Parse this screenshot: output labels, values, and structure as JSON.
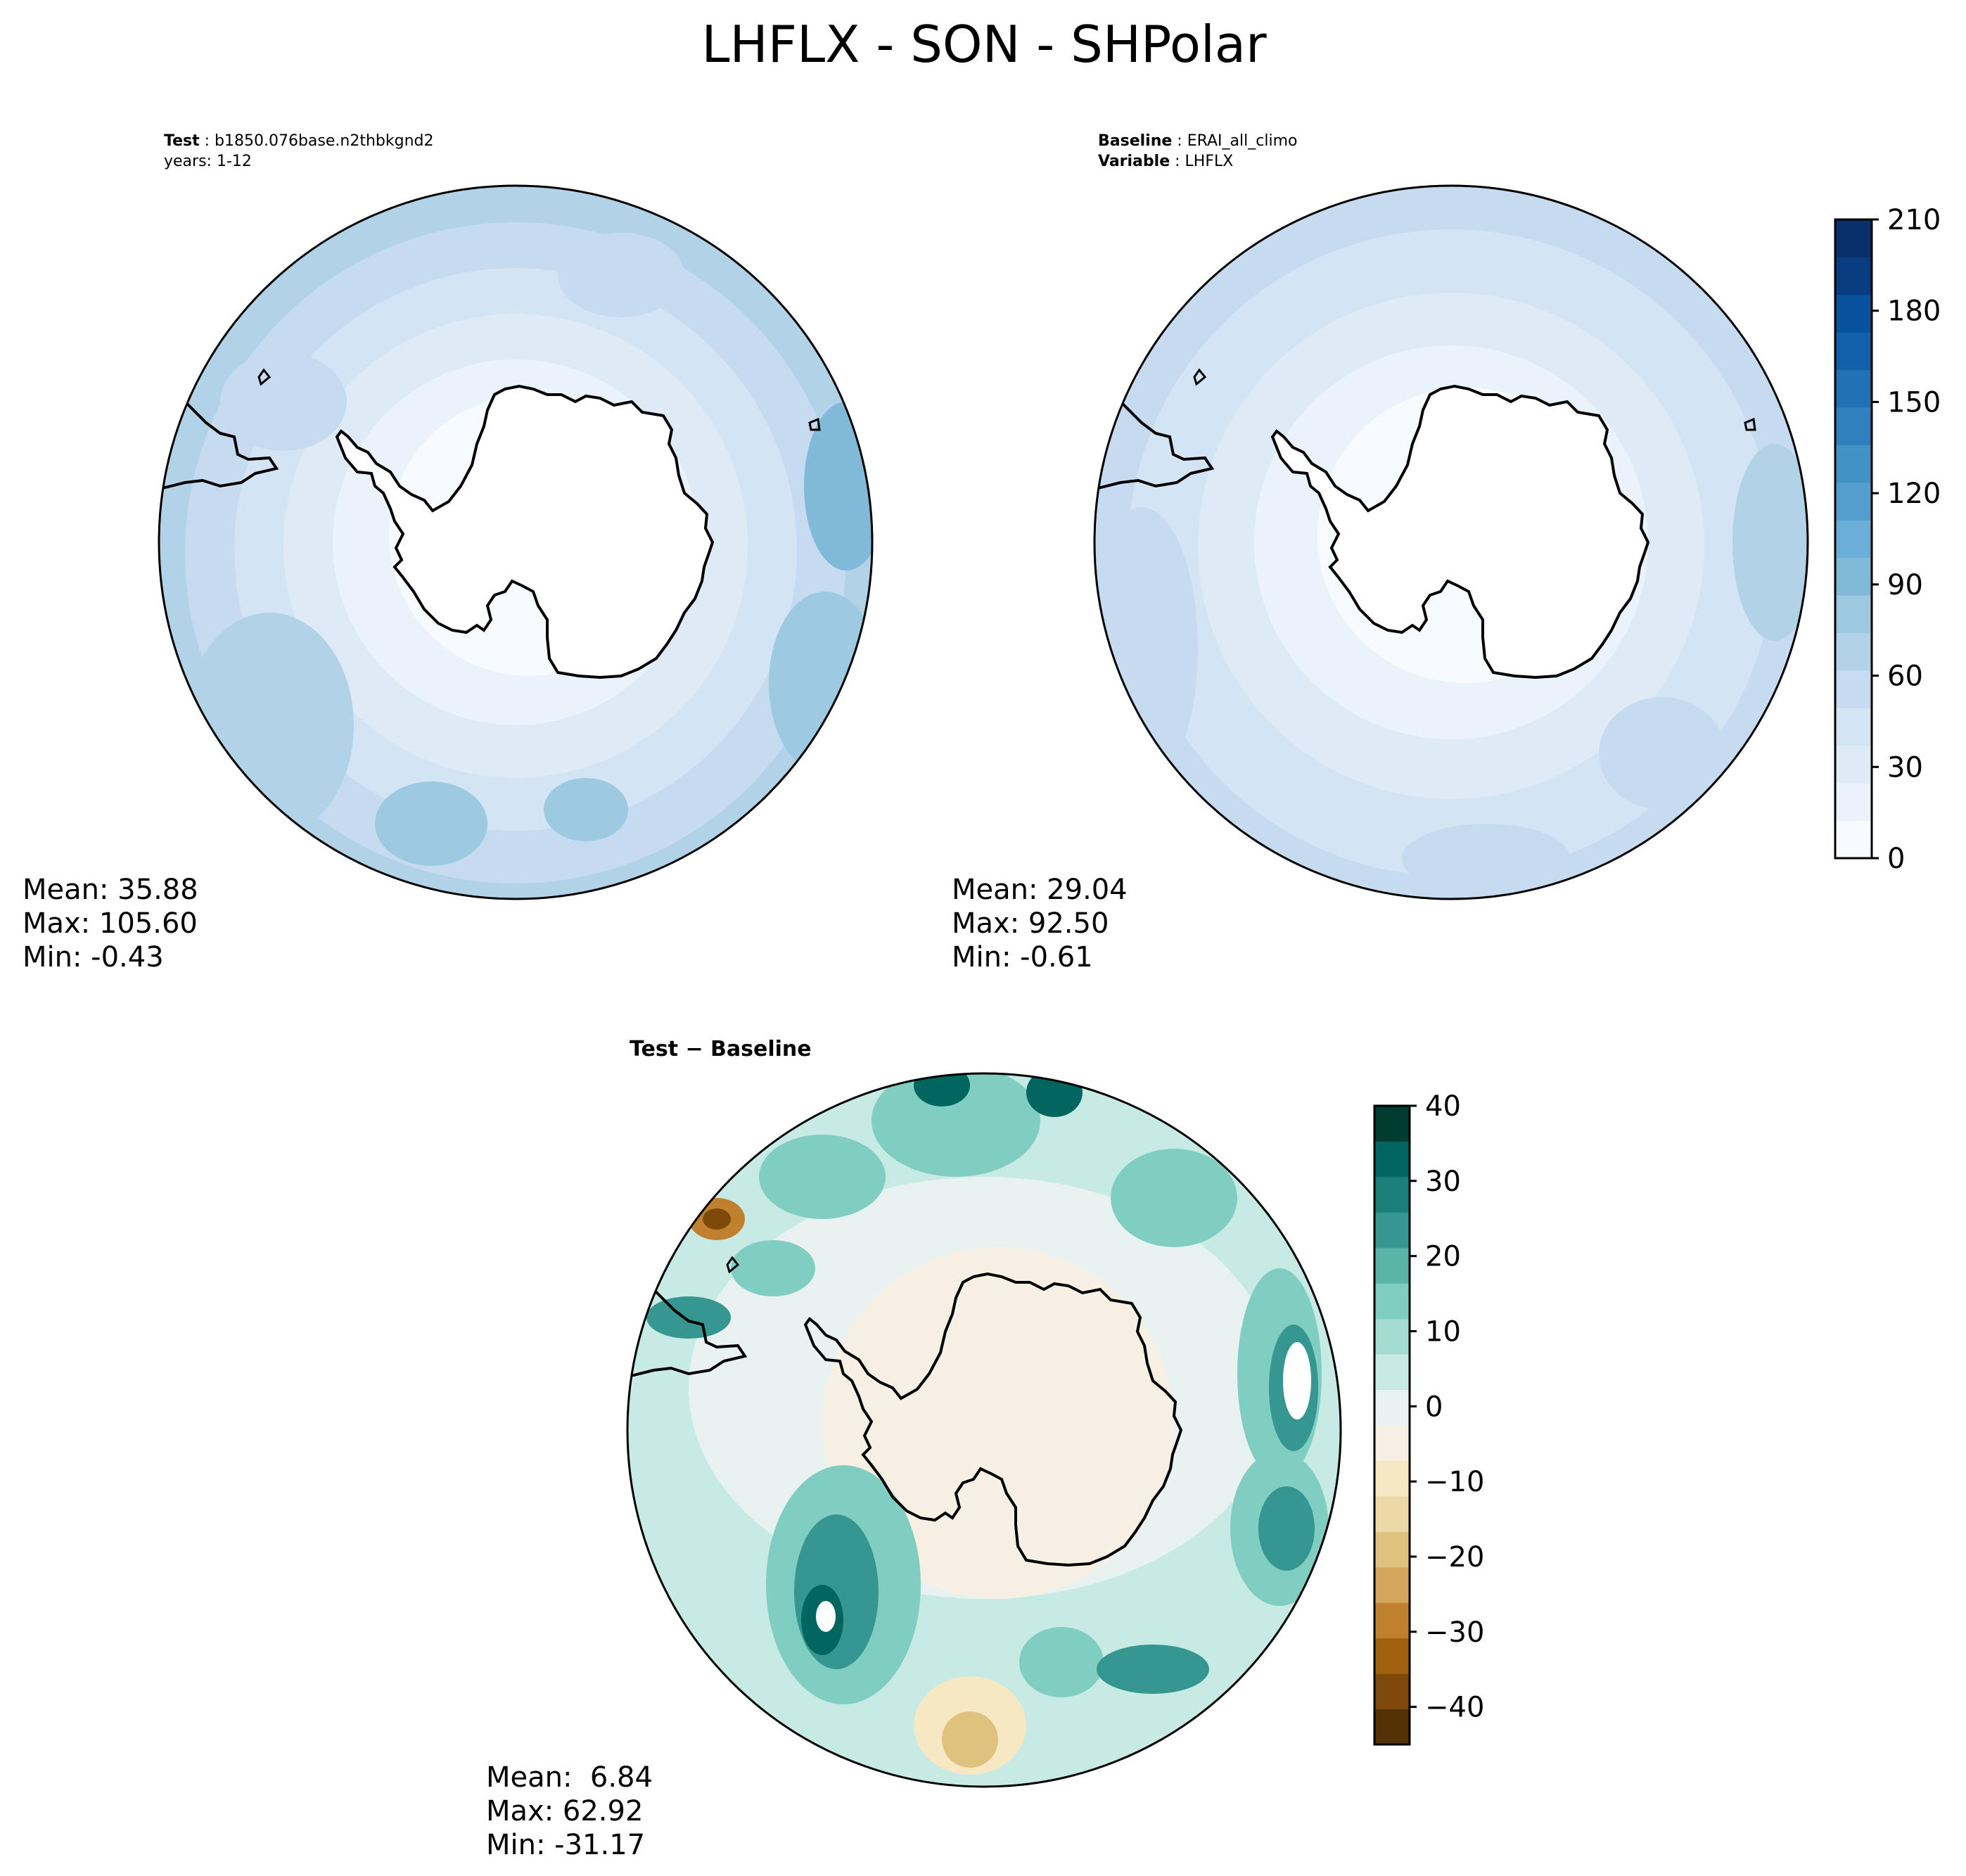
{
  "figure_title": "LHFLX - SON - SHPolar",
  "colors": {
    "seq": [
      "#f7fbff",
      "#eaf3fb",
      "#deebf7",
      "#d3e4f4",
      "#c6dbef",
      "#b2d2e8",
      "#9ecae1",
      "#81bad8",
      "#6baed6",
      "#539ecd",
      "#4292c6",
      "#3080bd",
      "#2171b5",
      "#1261a8",
      "#08519c",
      "#083e81",
      "#08306b"
    ],
    "div": [
      "#543005",
      "#7d4a0a",
      "#a0620f",
      "#bf812d",
      "#d4a65b",
      "#dfc27d",
      "#ecd9a8",
      "#f6e8c3",
      "#f5f0e3",
      "#e8f3f1",
      "#c7eae5",
      "#a4dcd1",
      "#80cdc1",
      "#5ab4a8",
      "#35978f",
      "#1a7f76",
      "#01665e",
      "#003c30"
    ],
    "land": "#ffffff",
    "coast": "#000000"
  },
  "panels": {
    "test": {
      "label_key": "Test",
      "label_value": "b1850.076base.n2thbkgnd2",
      "label_line2": "years: 1-12",
      "mean": "Mean: 35.88",
      "max": "Max: 105.60",
      "min": "Min: -0.43"
    },
    "baseline": {
      "label_key": "Baseline",
      "label_value": "ERAI_all_climo",
      "label_key2": "Variable",
      "label_value2": "LHFLX",
      "mean": "Mean: 29.04",
      "max": "Max: 92.50",
      "min": "Min: -0.61"
    },
    "diff": {
      "title": "Test − Baseline",
      "mean": "Mean:  6.84",
      "max": "Max: 62.92",
      "min": "Min: -31.17"
    }
  },
  "colorbar_main": {
    "ticks": [
      "0",
      "30",
      "60",
      "90",
      "120",
      "150",
      "180",
      "210"
    ]
  },
  "colorbar_diff": {
    "ticks": [
      "−40",
      "−30",
      "−20",
      "−10",
      "0",
      "10",
      "20",
      "30",
      "40"
    ]
  }
}
